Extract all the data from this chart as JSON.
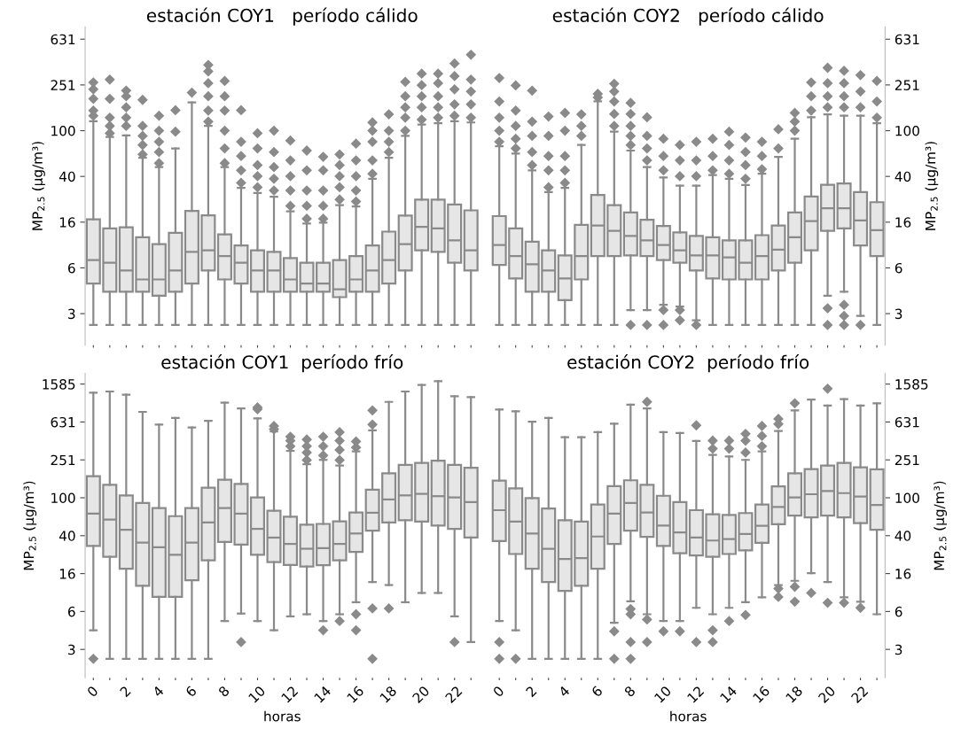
{
  "chart_data": [
    {
      "type": "box",
      "title": "estación COY1   período cálido",
      "ylabel": "MP$_{2.5}$ (μg/m³)",
      "log": true,
      "marker": "diamond",
      "tick_labels": "y",
      "categories": [
        "0",
        null,
        "2",
        null,
        "4",
        null,
        "6",
        null,
        "8",
        null,
        "10",
        null,
        "12",
        null,
        "14",
        null,
        "16",
        null,
        "18",
        null,
        "20",
        null,
        "22",
        null
      ],
      "ylim": [
        1.33,
        810
      ],
      "yticks": [
        {
          "value": 2.512,
          "label": "3"
        },
        {
          "value": 6.31,
          "label": "6"
        },
        {
          "value": 15.85,
          "label": "16"
        },
        {
          "value": 39.81,
          "label": "40"
        },
        100,
        {
          "value": 251.2,
          "label": "251"
        },
        {
          "value": 631,
          "label": "631"
        }
      ],
      "series": [
        {
          "color": "#e6e6e6",
          "boxes": [
            {
              "low": 2,
              "q1": 4.6,
              "median": 7.4,
              "q3": 16.8,
              "high": 121,
              "outliers": [
                135,
                150,
                190,
                230,
                264
              ]
            },
            {
              "low": 2,
              "q1": 3.9,
              "median": 7.0,
              "q3": 14,
              "high": 88,
              "outliers": [
                95,
                110,
                130,
                190,
                280
              ]
            },
            {
              "low": 2,
              "q1": 3.9,
              "median": 6.0,
              "q3": 14.3,
              "high": 91,
              "outliers": [
                110,
                130,
                160,
                200,
                224
              ]
            },
            {
              "low": 2,
              "q1": 3.9,
              "median": 5.0,
              "q3": 11.7,
              "high": 58,
              "outliers": [
                62,
                75,
                90,
                110,
                186
              ]
            },
            {
              "low": 2,
              "q1": 3.6,
              "median": 5.0,
              "q3": 10.2,
              "high": 48,
              "outliers": [
                52,
                65,
                80,
                100,
                135
              ]
            },
            {
              "low": 2,
              "q1": 3.9,
              "median": 6.0,
              "q3": 12.8,
              "high": 70,
              "outliers": [
                98,
                151
              ]
            },
            {
              "low": 2,
              "q1": 4.6,
              "median": 8.7,
              "q3": 19.9,
              "high": 177,
              "outliers": [
                215
              ]
            },
            {
              "low": 2,
              "q1": 6.0,
              "median": 9.0,
              "q3": 18.2,
              "high": 110,
              "outliers": [
                120,
                150,
                200,
                260,
                330,
                376
              ]
            },
            {
              "low": 2,
              "q1": 5.0,
              "median": 8.0,
              "q3": 12.4,
              "high": 48,
              "outliers": [
                52,
                70,
                100,
                150,
                200,
                272
              ]
            },
            {
              "low": 2,
              "q1": 4.6,
              "median": 7.0,
              "q3": 9.9,
              "high": 31.6,
              "outliers": [
                35,
                45,
                60,
                80,
                151
              ]
            },
            {
              "low": 2,
              "q1": 3.9,
              "median": 6.0,
              "q3": 9.0,
              "high": 28.5,
              "outliers": [
                32,
                40,
                50,
                70,
                95
              ]
            },
            {
              "low": 2,
              "q1": 3.9,
              "median": 6.0,
              "q3": 8.7,
              "high": 26.4,
              "outliers": [
                30,
                38,
                48,
                65,
                100
              ]
            },
            {
              "low": 2,
              "q1": 3.9,
              "median": 5.0,
              "q3": 7.7,
              "high": 19.7,
              "outliers": [
                22,
                30,
                40,
                55,
                82
              ]
            },
            {
              "low": 2,
              "q1": 3.9,
              "median": 4.6,
              "q3": 7.0,
              "high": 15.4,
              "outliers": [
                17,
                22,
                30,
                45,
                67
              ]
            },
            {
              "low": 2,
              "q1": 3.9,
              "median": 4.6,
              "q3": 7.0,
              "high": 15.7,
              "outliers": [
                17,
                22,
                30,
                45,
                59
              ]
            },
            {
              "low": 2,
              "q1": 3.5,
              "median": 4.1,
              "q3": 7.4,
              "high": 22.3,
              "outliers": [
                25,
                32,
                40,
                50,
                62
              ]
            },
            {
              "low": 2,
              "q1": 3.9,
              "median": 5.0,
              "q3": 8.0,
              "high": 21.7,
              "outliers": [
                24,
                30,
                40,
                55,
                77
              ]
            },
            {
              "low": 2,
              "q1": 3.9,
              "median": 6.0,
              "q3": 9.9,
              "high": 38,
              "outliers": [
                42,
                55,
                80,
                100,
                118
              ]
            },
            {
              "low": 2,
              "q1": 4.6,
              "median": 7.4,
              "q3": 13.1,
              "high": 58,
              "outliers": [
                65,
                80,
                100,
                139
              ]
            },
            {
              "low": 2,
              "q1": 6.0,
              "median": 10.2,
              "q3": 18.1,
              "high": 90,
              "outliers": [
                100,
                130,
                160,
                200,
                267
              ]
            },
            {
              "low": 2,
              "q1": 9.0,
              "median": 14.4,
              "q3": 25,
              "high": 113,
              "outliers": [
                125,
                160,
                200,
                250,
                315
              ]
            },
            {
              "low": 2,
              "q1": 8.7,
              "median": 14,
              "q3": 25,
              "high": 116,
              "outliers": [
                130,
                160,
                200,
                260,
                315
              ]
            },
            {
              "low": 2,
              "q1": 7.0,
              "median": 11,
              "q3": 22.6,
              "high": 121,
              "outliers": [
                135,
                170,
                230,
                300,
                387
              ]
            },
            {
              "low": 2,
              "q1": 6.0,
              "median": 9.0,
              "q3": 20.1,
              "high": 118,
              "outliers": [
                130,
                170,
                220,
                280,
                461
              ]
            }
          ]
        }
      ]
    },
    {
      "type": "box",
      "title": "estación COY2   período cálido",
      "ylabel": "MP$_{2.5}$ (μg/m³)",
      "log": true,
      "marker": "diamond",
      "tick_labels": "y",
      "categories": [
        "0",
        null,
        "2",
        null,
        "4",
        null,
        "6",
        null,
        "8",
        null,
        "10",
        null,
        "12",
        null,
        "14",
        null,
        "16",
        null,
        "18",
        null,
        "20",
        null,
        "22",
        null
      ],
      "ylim": [
        1.33,
        810
      ],
      "yticks": [
        {
          "value": 2.512,
          "label": "3"
        },
        {
          "value": 6.31,
          "label": "6"
        },
        {
          "value": 15.85,
          "label": "16"
        },
        {
          "value": 39.81,
          "label": "40"
        },
        100,
        {
          "value": 251.2,
          "label": "251"
        },
        {
          "value": 631,
          "label": "631"
        }
      ],
      "series": [
        {
          "color": "#e6e6e6",
          "boxes": [
            {
              "low": 2,
              "q1": 6.7,
              "median": 10,
              "q3": 17.9,
              "high": 73,
              "outliers": [
                80,
                100,
                130,
                180,
                289
              ]
            },
            {
              "low": 2,
              "q1": 5.1,
              "median": 8.0,
              "q3": 14,
              "high": 63,
              "outliers": [
                70,
                85,
                110,
                150,
                249
              ]
            },
            {
              "low": 2,
              "q1": 3.9,
              "median": 6.8,
              "q3": 10.7,
              "high": 45,
              "outliers": [
                50,
                65,
                90,
                120,
                224
              ]
            },
            {
              "low": 2,
              "q1": 3.9,
              "median": 6.0,
              "q3": 9.0,
              "high": 29,
              "outliers": [
                32,
                45,
                60,
                90,
                133
              ]
            },
            {
              "low": 2,
              "q1": 3.3,
              "median": 5.1,
              "q3": 8.1,
              "high": 31.6,
              "outliers": [
                35,
                45,
                60,
                100,
                143
              ]
            },
            {
              "low": 2,
              "q1": 5.0,
              "median": 8.0,
              "q3": 15,
              "high": 75,
              "outliers": [
                90,
                110,
                139
              ]
            },
            {
              "low": 2,
              "q1": 8.0,
              "median": 14.8,
              "q3": 27.4,
              "high": 181,
              "outliers": [
                195,
                210
              ]
            },
            {
              "low": 2,
              "q1": 8.0,
              "median": 13.3,
              "q3": 22.3,
              "high": 98,
              "outliers": [
                110,
                140,
                180,
                220,
                257
              ]
            },
            {
              "low": 2.7,
              "q1": 8.1,
              "median": 12,
              "q3": 19.3,
              "high": 67,
              "outliers": [
                75,
                90,
                110,
                140,
                175,
                2.0
              ]
            },
            {
              "low": 2.7,
              "q1": 8.0,
              "median": 11,
              "q3": 16.6,
              "high": 48,
              "outliers": [
                55,
                70,
                90,
                131,
                2.0
              ]
            },
            {
              "low": 3.0,
              "q1": 7.4,
              "median": 10,
              "q3": 14.7,
              "high": 39,
              "outliers": [
                45,
                60,
                85,
                2.7,
                2.0
              ]
            },
            {
              "low": 2.9,
              "q1": 7.0,
              "median": 9.0,
              "q3": 12.9,
              "high": 33,
              "outliers": [
                40,
                55,
                75,
                2.7,
                2.2
              ]
            },
            {
              "low": 2.2,
              "q1": 6.0,
              "median": 8.1,
              "q3": 12,
              "high": 33,
              "outliers": [
                40,
                55,
                80,
                2.0
              ]
            },
            {
              "low": 2,
              "q1": 5.1,
              "median": 8.1,
              "q3": 11.7,
              "high": 41,
              "outliers": [
                45,
                60,
                85
              ]
            },
            {
              "low": 2,
              "q1": 5.0,
              "median": 7.8,
              "q3": 11,
              "high": 38,
              "outliers": [
                42,
                55,
                75,
                98
              ]
            },
            {
              "low": 2,
              "q1": 5.0,
              "median": 7.0,
              "q3": 11,
              "high": 33.5,
              "outliers": [
                38,
                50,
                65,
                87
              ]
            },
            {
              "low": 2,
              "q1": 5.0,
              "median": 8.0,
              "q3": 12.2,
              "high": 42,
              "outliers": [
                46,
                60,
                80
              ]
            },
            {
              "low": 2,
              "q1": 6.0,
              "median": 9.1,
              "q3": 14.8,
              "high": 59,
              "outliers": [
                70,
                103
              ]
            },
            {
              "low": 2,
              "q1": 7.0,
              "median": 11.7,
              "q3": 19.3,
              "high": 85,
              "outliers": [
                100,
                120,
                143
              ]
            },
            {
              "low": 2,
              "q1": 9.0,
              "median": 16.2,
              "q3": 26.6,
              "high": 131,
              "outliers": [
                150,
                200,
                264
              ]
            },
            {
              "low": 3.6,
              "q1": 13.3,
              "median": 21,
              "q3": 33.7,
              "high": 139,
              "outliers": [
                160,
                200,
                260,
                355,
                2.8,
                2.0
              ]
            },
            {
              "low": 3.9,
              "q1": 14,
              "median": 21,
              "q3": 34.6,
              "high": 135,
              "outliers": [
                160,
                200,
                260,
                334,
                3.0,
                2.4,
                2.0
              ]
            },
            {
              "low": 2.4,
              "q1": 9.9,
              "median": 16.4,
              "q3": 29,
              "high": 135,
              "outliers": [
                160,
                220,
                306,
                2.0
              ]
            },
            {
              "low": 2,
              "q1": 8.0,
              "median": 13.5,
              "q3": 23.7,
              "high": 116,
              "outliers": [
                130,
                180,
                272
              ]
            }
          ]
        }
      ]
    },
    {
      "type": "box",
      "title": "estación COY1  período frío",
      "ylabel": "MP$_{2.5}$ (μg/m³)",
      "xlabel": "horas",
      "log": true,
      "marker": "diamond",
      "categories": [
        "0",
        null,
        "2",
        null,
        "4",
        null,
        "6",
        null,
        "8",
        null,
        "10",
        null,
        "12",
        null,
        "14",
        null,
        "16",
        null,
        "18",
        null,
        "20",
        null,
        "22",
        null
      ],
      "ylim": [
        1.26,
        2050
      ],
      "yticks": [
        {
          "value": 2.512,
          "label": "3"
        },
        {
          "value": 6.31,
          "label": "6"
        },
        {
          "value": 15.85,
          "label": "16"
        },
        {
          "value": 39.81,
          "label": "40"
        },
        100,
        {
          "value": 251.2,
          "label": "251"
        },
        {
          "value": 631,
          "label": "631"
        },
        {
          "value": 1585,
          "label": "1585"
        }
      ],
      "series": [
        {
          "color": "#e6e6e6",
          "boxes": [
            {
              "low": 4.0,
              "q1": 31,
              "median": 68,
              "q3": 169,
              "high": 1288,
              "outliers": [
                2.0
              ]
            },
            {
              "low": 2,
              "q1": 23.8,
              "median": 59,
              "q3": 137,
              "high": 1324
            },
            {
              "low": 2,
              "q1": 17.8,
              "median": 46,
              "q3": 106,
              "high": 1222
            },
            {
              "low": 2,
              "q1": 11.8,
              "median": 33.7,
              "q3": 88,
              "high": 807
            },
            {
              "low": 2,
              "q1": 9.0,
              "median": 30,
              "q3": 78,
              "high": 593
            },
            {
              "low": 2,
              "q1": 9.0,
              "median": 25,
              "q3": 64,
              "high": 695
            },
            {
              "low": 2,
              "q1": 13.5,
              "median": 33.7,
              "q3": 78,
              "high": 553
            },
            {
              "low": 2,
              "q1": 21.9,
              "median": 55,
              "q3": 128,
              "high": 649
            },
            {
              "low": 5.0,
              "q1": 34.2,
              "median": 78,
              "q3": 155,
              "high": 1007
            },
            {
              "low": 6.0,
              "q1": 32,
              "median": 68,
              "q3": 140,
              "high": 877,
              "outliers": [
                3.0
              ]
            },
            {
              "low": 5.0,
              "q1": 25,
              "median": 47,
              "q3": 101,
              "high": 690,
              "outliers": [
                860,
                900
              ]
            },
            {
              "low": 4.0,
              "q1": 21,
              "median": 38,
              "q3": 73,
              "high": 500,
              "outliers": [
                530,
                573
              ]
            },
            {
              "low": 5.6,
              "q1": 19.5,
              "median": 32.6,
              "q3": 63,
              "high": 313,
              "outliers": [
                350,
                400,
                441
              ]
            },
            {
              "low": 5.9,
              "q1": 18.8,
              "median": 29,
              "q3": 52,
              "high": 226,
              "outliers": [
                250,
                300,
                350,
                412
              ]
            },
            {
              "low": 5.0,
              "q1": 19.4,
              "median": 29.4,
              "q3": 53,
              "high": 251,
              "outliers": [
                280,
                350,
                441,
                4.0
              ]
            },
            {
              "low": 5.9,
              "q1": 21.9,
              "median": 32.6,
              "q3": 56.5,
              "high": 219,
              "outliers": [
                250,
                320,
                400,
                493,
                5.0
              ]
            },
            {
              "low": 7.9,
              "q1": 26.9,
              "median": 42,
              "q3": 70,
              "high": 309,
              "outliers": [
                340,
                393,
                5.9,
                4.0
              ]
            },
            {
              "low": 12.9,
              "q1": 45,
              "median": 69.5,
              "q3": 122,
              "high": 516,
              "outliers": [
                593,
                836,
                6.8,
                2.0
              ]
            },
            {
              "low": 12,
              "q1": 55,
              "median": 96,
              "q3": 181,
              "high": 1028,
              "outliers": [
                6.8
              ]
            },
            {
              "low": 7.9,
              "q1": 58,
              "median": 106,
              "q3": 222,
              "high": 1324
            },
            {
              "low": 9.9,
              "q1": 56,
              "median": 110,
              "q3": 234,
              "high": 1552
            },
            {
              "low": 9.9,
              "q1": 51,
              "median": 104,
              "q3": 246,
              "high": 1698
            },
            {
              "low": 5.6,
              "q1": 47,
              "median": 101,
              "q3": 222,
              "high": 1180,
              "outliers": [
                3.0
              ]
            },
            {
              "low": 3.0,
              "q1": 38,
              "median": 90,
              "q3": 207,
              "high": 1156
            }
          ]
        }
      ]
    },
    {
      "type": "box",
      "title": "estación COY2  período frío",
      "ylabel": "MP$_{2.5}$ (μg/m³)",
      "xlabel": "horas",
      "log": true,
      "marker": "diamond",
      "categories": [
        "0",
        null,
        "2",
        null,
        "4",
        null,
        "6",
        null,
        "8",
        null,
        "10",
        null,
        "12",
        null,
        "14",
        null,
        "16",
        null,
        "18",
        null,
        "20",
        null,
        "22",
        null
      ],
      "ylim": [
        1.26,
        2050
      ],
      "yticks": [
        {
          "value": 2.512,
          "label": "3"
        },
        {
          "value": 6.31,
          "label": "6"
        },
        {
          "value": 15.85,
          "label": "16"
        },
        {
          "value": 39.81,
          "label": "40"
        },
        100,
        {
          "value": 251.2,
          "label": "251"
        },
        {
          "value": 631,
          "label": "631"
        },
        {
          "value": 1585,
          "label": "1585"
        }
      ],
      "series": [
        {
          "color": "#e6e6e6",
          "boxes": [
            {
              "low": 5.0,
              "q1": 35,
              "median": 74,
              "q3": 152,
              "high": 853,
              "outliers": [
                3.0,
                2.0
              ]
            },
            {
              "low": 4.0,
              "q1": 25.5,
              "median": 56,
              "q3": 126,
              "high": 819,
              "outliers": [
                2.0
              ]
            },
            {
              "low": 2,
              "q1": 17.8,
              "median": 42,
              "q3": 99,
              "high": 635
            },
            {
              "low": 2,
              "q1": 12.9,
              "median": 29,
              "q3": 77,
              "high": 695
            },
            {
              "low": 2,
              "q1": 10.4,
              "median": 22.6,
              "q3": 58,
              "high": 436
            },
            {
              "low": 2,
              "q1": 11.8,
              "median": 23.1,
              "q3": 56,
              "high": 436
            },
            {
              "low": 2,
              "q1": 17.8,
              "median": 39,
              "q3": 85,
              "high": 493
            },
            {
              "low": 4.8,
              "q1": 32.6,
              "median": 68,
              "q3": 133,
              "high": 605,
              "outliers": [
                3.9,
                2.0
              ]
            },
            {
              "low": 8.1,
              "q1": 45,
              "median": 88,
              "q3": 153,
              "high": 960,
              "outliers": [
                6.7,
                5.9,
                3.0,
                2.0
              ]
            },
            {
              "low": 5.9,
              "q1": 38.7,
              "median": 70,
              "q3": 137,
              "high": 877,
              "outliers": [
                1028,
                5.2,
                3.0
              ]
            },
            {
              "low": 5.0,
              "q1": 31,
              "median": 51,
              "q3": 105,
              "high": 493,
              "outliers": [
                3.9
              ]
            },
            {
              "low": 5.0,
              "q1": 26,
              "median": 43,
              "q3": 90,
              "high": 483,
              "outliers": [
                3.9
              ]
            },
            {
              "low": 6.9,
              "q1": 24.6,
              "median": 38,
              "q3": 74,
              "high": 398,
              "outliers": [
                581,
                3.0
              ]
            },
            {
              "low": 5.9,
              "q1": 23.8,
              "median": 35.4,
              "q3": 67,
              "high": 284,
              "outliers": [
                330,
                401,
                4.0,
                3.0
              ]
            },
            {
              "low": 6.9,
              "q1": 25.5,
              "median": 36.6,
              "q3": 66,
              "high": 273,
              "outliers": [
                330,
                401,
                5.0
              ]
            },
            {
              "low": 7.9,
              "q1": 27.9,
              "median": 41.5,
              "q3": 69,
              "high": 251,
              "outliers": [
                300,
                400,
                473,
                5.8
              ]
            },
            {
              "low": 8.9,
              "q1": 33.5,
              "median": 50.6,
              "q3": 85,
              "high": 309,
              "outliers": [
                350,
                450,
                573
              ]
            },
            {
              "low": 12,
              "q1": 52.7,
              "median": 80,
              "q3": 132,
              "high": 506,
              "outliers": [
                600,
                681,
                11,
                9.0
              ]
            },
            {
              "low": 13.3,
              "q1": 65,
              "median": 101,
              "q3": 181,
              "high": 836,
              "outliers": [
                993,
                11.5,
                8.0
              ]
            },
            {
              "low": 16,
              "q1": 62,
              "median": 109,
              "q3": 201,
              "high": 1087,
              "outliers": [
                9.9
              ]
            },
            {
              "low": 12.9,
              "q1": 65,
              "median": 118,
              "q3": 219,
              "high": 940,
              "outliers": [
                1419,
                7.8
              ]
            },
            {
              "low": 8.9,
              "q1": 62,
              "median": 112,
              "q3": 234,
              "high": 1102,
              "outliers": [
                7.8
              ]
            },
            {
              "low": 8.0,
              "q1": 54,
              "median": 103,
              "q3": 210,
              "high": 940,
              "outliers": [
                6.9
              ]
            },
            {
              "low": 5.9,
              "q1": 46,
              "median": 84,
              "q3": 200,
              "high": 993
            }
          ]
        }
      ]
    }
  ]
}
